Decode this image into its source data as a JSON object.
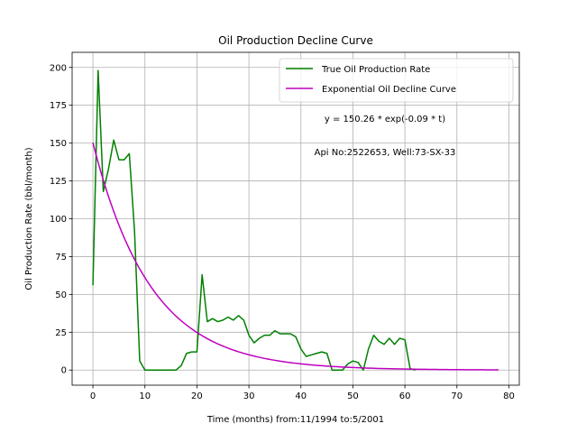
{
  "chart_data": {
    "type": "line",
    "title": "Oil Production Decline Curve",
    "xlabel": "Time (months) from:11/1994 to:5/2001",
    "ylabel": "Oil Production Rate (bbl/month)",
    "xlim": [
      -4,
      82
    ],
    "ylim": [
      -10,
      210
    ],
    "xticks": [
      0,
      10,
      20,
      30,
      40,
      50,
      60,
      70,
      80
    ],
    "yticks": [
      0,
      25,
      50,
      75,
      100,
      125,
      150,
      175,
      200
    ],
    "grid": true,
    "legend_position": "top-right",
    "annotations": [
      "y = 150.26 * exp(-0.09 * t)",
      "Api No:2522653, Well:73-SX-33"
    ],
    "series": [
      {
        "name": "True Oil Production Rate",
        "color": "#008000",
        "x": [
          0,
          1,
          2,
          3,
          4,
          5,
          6,
          7,
          8,
          9,
          10,
          11,
          12,
          13,
          14,
          15,
          16,
          17,
          18,
          19,
          20,
          21,
          22,
          23,
          24,
          25,
          26,
          27,
          28,
          29,
          30,
          31,
          32,
          33,
          34,
          35,
          36,
          37,
          38,
          39,
          40,
          41,
          42,
          43,
          44,
          45,
          46,
          47,
          48,
          49,
          50,
          51,
          52,
          53,
          54,
          55,
          56,
          57,
          58,
          59,
          60,
          61,
          62
        ],
        "y": [
          56,
          198,
          118,
          133,
          152,
          139,
          139,
          143,
          92,
          6,
          0,
          0,
          0,
          0,
          0,
          0,
          0,
          3,
          11,
          12,
          12,
          63,
          32,
          34,
          32,
          33,
          35,
          33,
          36,
          33,
          23,
          18,
          21,
          23,
          23,
          26,
          24,
          24,
          24,
          22,
          14,
          9,
          10,
          11,
          12,
          11,
          0,
          0,
          0,
          4,
          6,
          5,
          0,
          14,
          23,
          19,
          17,
          21,
          17,
          21,
          20,
          1,
          0
        ]
      },
      {
        "name": "Exponential Oil Decline Curve",
        "color": "#bf00bf",
        "function": "y = 150.26 * exp(-0.09 * t)",
        "a": 150.26,
        "b": 0.09,
        "x_range": [
          0,
          78
        ]
      }
    ]
  }
}
